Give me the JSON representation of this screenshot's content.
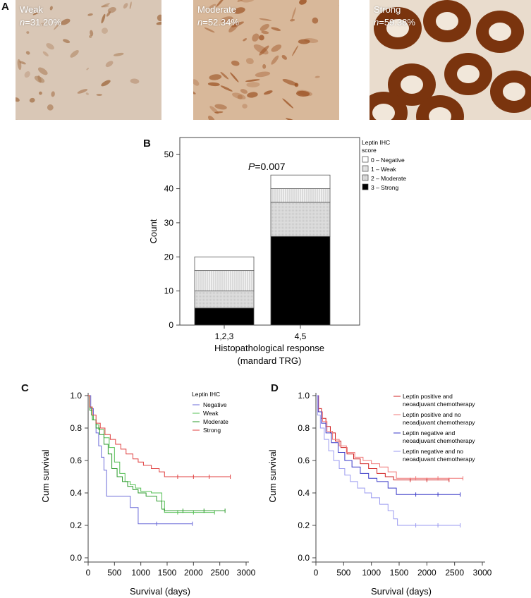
{
  "panel_labels": {
    "a": "A",
    "b": "B",
    "c": "C",
    "d": "D"
  },
  "histology": [
    {
      "label": "Weak",
      "n_prefix": "n",
      "n_value": "=31.20%",
      "bg": "#d9c7b6",
      "stain": "#a06a40"
    },
    {
      "label": "Moderate",
      "n_prefix": "n",
      "n_value": "=52.34%",
      "bg": "#d8b89a",
      "stain": "#9a4e1e"
    },
    {
      "label": "Strong",
      "n_prefix": "n",
      "n_value": "=59.38%",
      "bg": "#e9dccd",
      "stain": "#7a340e"
    }
  ],
  "chart_data": [
    {
      "type": "bar",
      "stacked": true,
      "categories": [
        "1,2,3",
        "4,5"
      ],
      "series": [
        {
          "name": "3 – Strong",
          "values": [
            5,
            26
          ],
          "color": "#000000",
          "pattern": "solid"
        },
        {
          "name": "2 – Moderate",
          "values": [
            5,
            10
          ],
          "color": "#d8d8d8",
          "pattern": "light"
        },
        {
          "name": "1 – Weak",
          "values": [
            6,
            4
          ],
          "color": "#ebebeb",
          "pattern": "striped"
        },
        {
          "name": "0 – Negative",
          "values": [
            4,
            4
          ],
          "color": "#ffffff",
          "pattern": "blank"
        }
      ],
      "xlabel": "Histopathological response",
      "xlabel2": "(mandard TRG)",
      "ylabel": "Count",
      "ylim": [
        0,
        55
      ],
      "yticks": [
        0,
        10,
        20,
        30,
        40,
        50
      ],
      "annotation_prefix": "P",
      "annotation_value": "=0.007",
      "legend_title_1": "Leptin IHC",
      "legend_title_2": "score",
      "legend_position": "right"
    },
    {
      "type": "line",
      "step": true,
      "xlabel": "Survival (days)",
      "ylabel": "Cum survival",
      "xlim": [
        0,
        3000
      ],
      "ylim": [
        0,
        1.0
      ],
      "xticks": [
        0,
        500,
        1000,
        1500,
        2000,
        2500,
        3000
      ],
      "yticks": [
        0.0,
        0.2,
        0.4,
        0.6,
        0.8,
        1.0
      ],
      "legend_title": "Leptin IHC",
      "legend_position": "top-right",
      "series": [
        {
          "name": "Negative",
          "color": "#6b6bd8",
          "x": [
            0,
            50,
            100,
            150,
            200,
            250,
            300,
            350,
            700,
            800,
            950,
            1000,
            1300,
            1980
          ],
          "y": [
            1.0,
            0.92,
            0.85,
            0.77,
            0.69,
            0.62,
            0.54,
            0.38,
            0.38,
            0.31,
            0.21,
            0.21,
            0.21,
            0.21
          ],
          "censored": [
            [
              1300,
              0.21
            ],
            [
              1980,
              0.21
            ]
          ]
        },
        {
          "name": "Weak",
          "color": "#55c055",
          "x": [
            0,
            30,
            60,
            100,
            150,
            200,
            300,
            400,
            500,
            600,
            700,
            800,
            900,
            1000,
            1200,
            1400,
            1450,
            1700,
            2000,
            2400
          ],
          "y": [
            1.0,
            0.93,
            0.88,
            0.85,
            0.82,
            0.79,
            0.74,
            0.68,
            0.59,
            0.52,
            0.47,
            0.45,
            0.43,
            0.41,
            0.4,
            0.35,
            0.28,
            0.28,
            0.28,
            0.28
          ],
          "censored": [
            [
              1700,
              0.28
            ],
            [
              2000,
              0.28
            ],
            [
              2400,
              0.28
            ]
          ]
        },
        {
          "name": "Moderate",
          "color": "#2a9a2a",
          "x": [
            0,
            30,
            80,
            150,
            220,
            300,
            380,
            450,
            550,
            650,
            750,
            850,
            950,
            1100,
            1300,
            1400,
            1450,
            1800,
            2200,
            2600
          ],
          "y": [
            1.0,
            0.91,
            0.85,
            0.8,
            0.76,
            0.7,
            0.64,
            0.55,
            0.5,
            0.47,
            0.44,
            0.42,
            0.4,
            0.38,
            0.35,
            0.3,
            0.29,
            0.29,
            0.29,
            0.29
          ],
          "censored": [
            [
              1800,
              0.29
            ],
            [
              2200,
              0.29
            ],
            [
              2600,
              0.29
            ]
          ]
        },
        {
          "name": "Strong",
          "color": "#e04040",
          "x": [
            0,
            30,
            80,
            150,
            230,
            320,
            420,
            520,
            620,
            720,
            850,
            950,
            1050,
            1200,
            1350,
            1450,
            1700,
            2000,
            2300,
            2700
          ],
          "y": [
            1.0,
            0.93,
            0.88,
            0.83,
            0.8,
            0.76,
            0.73,
            0.7,
            0.67,
            0.64,
            0.61,
            0.59,
            0.57,
            0.55,
            0.53,
            0.5,
            0.5,
            0.5,
            0.5,
            0.5
          ],
          "censored": [
            [
              1700,
              0.5
            ],
            [
              2000,
              0.5
            ],
            [
              2300,
              0.5
            ],
            [
              2700,
              0.5
            ]
          ]
        }
      ]
    },
    {
      "type": "line",
      "step": true,
      "xlabel": "Survival (days)",
      "ylabel": "Cum survival",
      "xlim": [
        0,
        3000
      ],
      "ylim": [
        0,
        1.0
      ],
      "xticks": [
        0,
        500,
        1000,
        1500,
        2000,
        2500,
        3000
      ],
      "yticks": [
        0.0,
        0.2,
        0.4,
        0.6,
        0.8,
        1.0
      ],
      "legend_position": "top-right",
      "series": [
        {
          "name_1": "Leptin positive and",
          "name_2": "neoadjuvant chemotherapy",
          "color": "#d02020",
          "x": [
            0,
            40,
            100,
            180,
            260,
            350,
            450,
            560,
            680,
            800,
            950,
            1100,
            1250,
            1400,
            1700,
            2000,
            2400
          ],
          "y": [
            1.0,
            0.92,
            0.86,
            0.81,
            0.77,
            0.72,
            0.68,
            0.64,
            0.61,
            0.58,
            0.55,
            0.52,
            0.5,
            0.48,
            0.48,
            0.48,
            0.48
          ],
          "censored": [
            [
              1700,
              0.48
            ],
            [
              2000,
              0.48
            ],
            [
              2400,
              0.48
            ]
          ]
        },
        {
          "name_1": "Leptin positive and no",
          "name_2": "neoadjuvant chemotherapy",
          "color": "#f07878",
          "x": [
            0,
            50,
            120,
            200,
            300,
            420,
            550,
            700,
            850,
            1000,
            1150,
            1300,
            1450,
            1800,
            2200,
            2650
          ],
          "y": [
            1.0,
            0.9,
            0.84,
            0.78,
            0.73,
            0.69,
            0.65,
            0.62,
            0.6,
            0.58,
            0.56,
            0.53,
            0.49,
            0.49,
            0.49,
            0.49
          ],
          "censored": [
            [
              1800,
              0.49
            ],
            [
              2200,
              0.49
            ],
            [
              2650,
              0.49
            ]
          ]
        },
        {
          "name_1": "Leptin negative and",
          "name_2": "neoadjuvant chemotherapy",
          "color": "#3a3ac8",
          "x": [
            0,
            40,
            100,
            180,
            280,
            400,
            520,
            650,
            800,
            950,
            1100,
            1300,
            1450,
            1800,
            2200,
            2600
          ],
          "y": [
            1.0,
            0.9,
            0.83,
            0.77,
            0.71,
            0.65,
            0.6,
            0.56,
            0.52,
            0.49,
            0.47,
            0.43,
            0.39,
            0.39,
            0.39,
            0.39
          ],
          "censored": [
            [
              1800,
              0.39
            ],
            [
              2200,
              0.39
            ],
            [
              2600,
              0.39
            ]
          ]
        },
        {
          "name_1": "Leptin negative and no",
          "name_2": "neoadjuvant chemotherapy",
          "color": "#9a9af0",
          "x": [
            0,
            30,
            80,
            150,
            230,
            320,
            420,
            520,
            620,
            750,
            880,
            1000,
            1150,
            1300,
            1400,
            1470,
            1800,
            2200,
            2600
          ],
          "y": [
            1.0,
            0.88,
            0.8,
            0.73,
            0.66,
            0.6,
            0.55,
            0.51,
            0.47,
            0.43,
            0.4,
            0.37,
            0.33,
            0.29,
            0.24,
            0.2,
            0.2,
            0.2,
            0.2
          ],
          "censored": [
            [
              1800,
              0.2
            ],
            [
              2200,
              0.2
            ],
            [
              2600,
              0.2
            ]
          ]
        }
      ]
    }
  ]
}
